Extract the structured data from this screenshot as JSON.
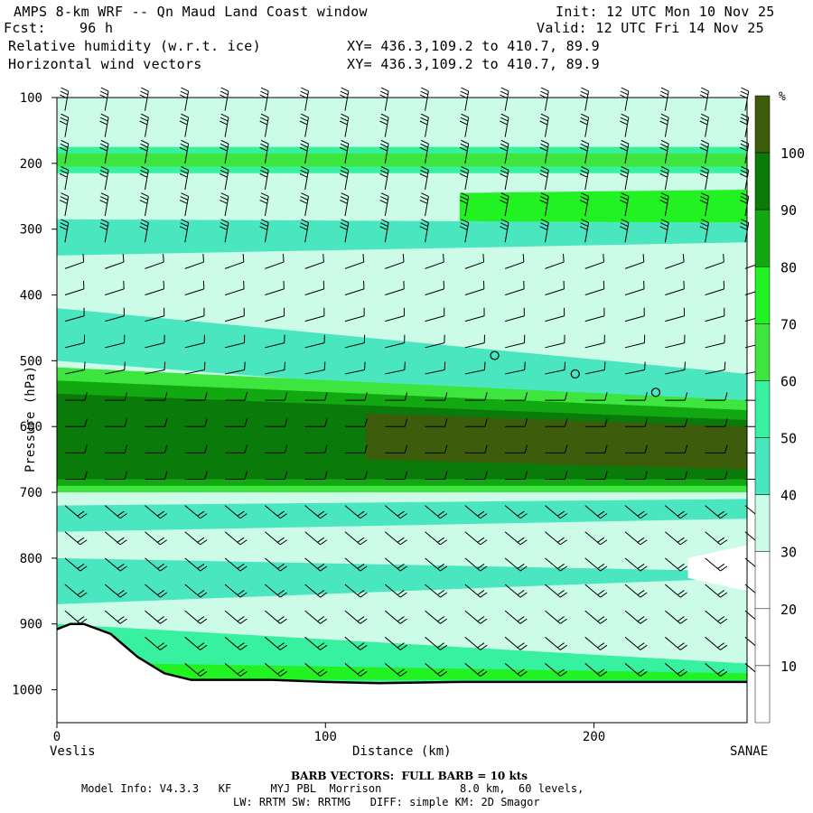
{
  "header": {
    "title": "AMPS 8-km WRF -- Qn Maud Land Coast window",
    "fcst": "Fcst:    96 h",
    "init": "Init: 12 UTC Mon 10 Nov 25",
    "valid": "Valid: 12 UTC Fri 14 Nov 25",
    "field1": "Relative humidity (w.r.t. ice)",
    "field2": "Horizontal wind vectors",
    "xy1": "XY= 436.3,109.2 to 410.7, 89.9",
    "xy2": "XY= 436.3,109.2 to 410.7, 89.9"
  },
  "footer": {
    "barb_note": "BARB VECTORS:  FULL BARB = 10 kts",
    "model_info": "Model Info: V4.3.3   KF      MYJ PBL  Morrison            8.0 km,  60 levels,",
    "model_info2": "LW: RRTM SW: RRTMG   DIFF: simple KM: 2D Smagor"
  },
  "colors": {
    "rh_10_30": "#ffffff",
    "rh_30_40": "#ccfce8",
    "rh_40_50": "#4ae6c0",
    "rh_50_60": "#37f0a0",
    "rh_60_70": "#3fe53f",
    "rh_70_80": "#22f222",
    "rh_80_90": "#12a812",
    "rh_90_100": "#0a7a0a",
    "rh_100_plus": "#3d5c0c",
    "terrain_line": "#000000",
    "wind_barb": "#000000"
  },
  "chart_data": {
    "type": "heatmap",
    "title": "Relative humidity (w.r.t. ice)",
    "xlabel": "Distance (km)",
    "ylabel": "Pressure (hPa)",
    "x_left_label": "Veslis",
    "x_right_label": "SANAE",
    "xlim": [
      0,
      257
    ],
    "ylim": [
      1050,
      100
    ],
    "x_ticks": [
      0,
      100,
      200
    ],
    "y_ticks": [
      100,
      200,
      300,
      400,
      500,
      600,
      700,
      800,
      900,
      1000
    ],
    "colorbar": {
      "unit": "%",
      "levels": [
        10,
        20,
        30,
        40,
        50,
        60,
        70,
        80,
        90,
        100
      ],
      "labels": [
        "10",
        "20",
        "30",
        "40",
        "50",
        "60",
        "70",
        "80",
        "90",
        "100"
      ]
    },
    "rh_bands": [
      {
        "range": "30-40",
        "top": [
          [
            0,
            100
          ],
          [
            257,
            100
          ]
        ],
        "bottom": [
          [
            0,
            135
          ],
          [
            257,
            135
          ]
        ]
      },
      {
        "range": "50-60",
        "top": [
          [
            0,
            175
          ],
          [
            257,
            175
          ]
        ],
        "bottom": [
          [
            0,
            215
          ],
          [
            257,
            215
          ]
        ]
      },
      {
        "range": "60-70",
        "top": [
          [
            0,
            185
          ],
          [
            257,
            185
          ]
        ],
        "bottom": [
          [
            0,
            205
          ],
          [
            257,
            205
          ]
        ]
      },
      {
        "range": "70-80",
        "top": [
          [
            150,
            245
          ],
          [
            257,
            240
          ]
        ],
        "bottom": [
          [
            150,
            290
          ],
          [
            257,
            290
          ]
        ]
      },
      {
        "range": "40-50",
        "top": [
          [
            0,
            285
          ],
          [
            257,
            290
          ]
        ],
        "bottom": [
          [
            0,
            340
          ],
          [
            257,
            320
          ]
        ]
      },
      {
        "range": "30-40",
        "top": [
          [
            0,
            370
          ],
          [
            100,
            380
          ],
          [
            257,
            400
          ]
        ],
        "bottom": [
          [
            0,
            460
          ],
          [
            100,
            480
          ],
          [
            257,
            520
          ]
        ]
      },
      {
        "range": "40-50",
        "top": [
          [
            0,
            420
          ],
          [
            257,
            520
          ]
        ],
        "bottom": [
          [
            0,
            500
          ],
          [
            257,
            580
          ]
        ]
      },
      {
        "range": "60-70",
        "top": [
          [
            0,
            510
          ],
          [
            257,
            560
          ]
        ],
        "bottom": [
          [
            0,
            700
          ],
          [
            257,
            700
          ]
        ]
      },
      {
        "range": "80-90",
        "top": [
          [
            0,
            530
          ],
          [
            257,
            575
          ]
        ],
        "bottom": [
          [
            0,
            690
          ],
          [
            257,
            690
          ]
        ]
      },
      {
        "range": "90-100",
        "top": [
          [
            0,
            550
          ],
          [
            257,
            590
          ]
        ],
        "bottom": [
          [
            0,
            680
          ],
          [
            257,
            680
          ]
        ]
      },
      {
        "range": "100+",
        "top": [
          [
            115,
            580
          ],
          [
            257,
            600
          ]
        ],
        "bottom": [
          [
            115,
            650
          ],
          [
            257,
            665
          ]
        ]
      },
      {
        "range": "40-50",
        "top": [
          [
            0,
            720
          ],
          [
            257,
            710
          ]
        ],
        "bottom": [
          [
            0,
            870
          ],
          [
            257,
            830
          ]
        ]
      },
      {
        "range": "30-40",
        "top": [
          [
            0,
            760
          ],
          [
            257,
            740
          ]
        ],
        "bottom": [
          [
            0,
            800
          ],
          [
            257,
            820
          ]
        ]
      },
      {
        "range": "20-30",
        "top": [
          [
            235,
            800
          ],
          [
            257,
            780
          ]
        ],
        "bottom": [
          [
            235,
            830
          ],
          [
            257,
            850
          ]
        ]
      },
      {
        "range": "50-60",
        "top": [
          [
            0,
            900
          ],
          [
            257,
            960
          ]
        ],
        "bottom": [
          [
            0,
            990
          ],
          [
            257,
            990
          ]
        ]
      },
      {
        "range": "70-80",
        "top": [
          [
            30,
            960
          ],
          [
            257,
            975
          ]
        ],
        "bottom": [
          [
            30,
            985
          ],
          [
            257,
            985
          ]
        ]
      }
    ],
    "terrain_surface_hpa": [
      [
        0,
        908
      ],
      [
        5,
        900
      ],
      [
        10,
        900
      ],
      [
        20,
        915
      ],
      [
        30,
        950
      ],
      [
        40,
        975
      ],
      [
        50,
        985
      ],
      [
        70,
        985
      ],
      [
        80,
        985
      ],
      [
        100,
        988
      ],
      [
        120,
        990
      ],
      [
        150,
        988
      ],
      [
        180,
        988
      ],
      [
        200,
        988
      ],
      [
        257,
        988
      ]
    ],
    "calm_markers": [
      [
        163,
        492
      ],
      [
        193,
        520
      ],
      [
        223,
        548
      ]
    ]
  }
}
